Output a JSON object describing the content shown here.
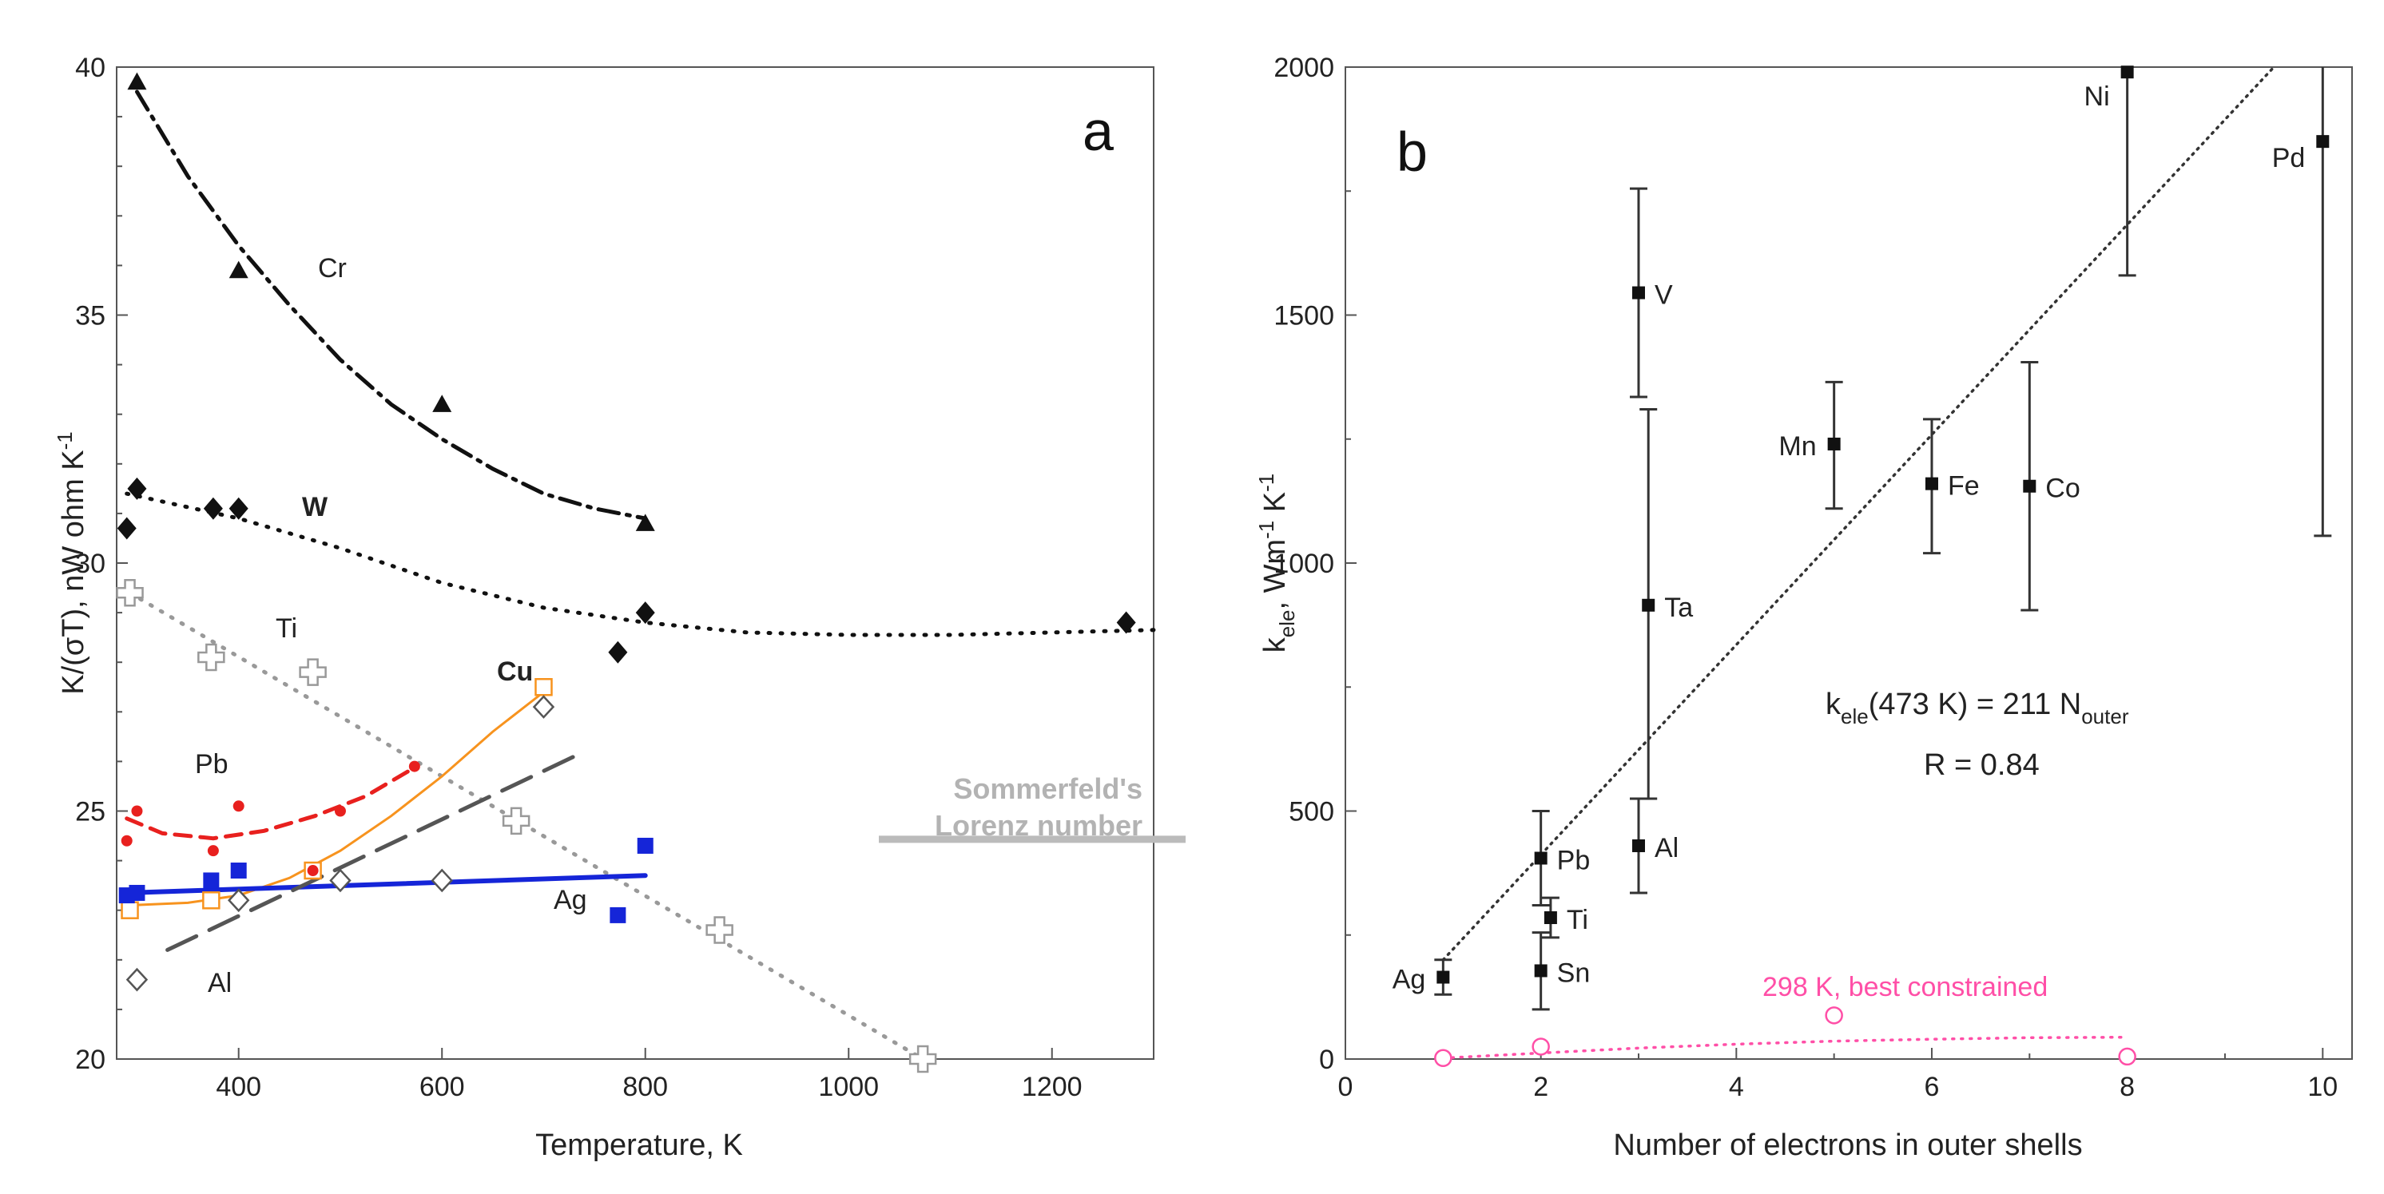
{
  "chart_data": [
    {
      "type": "scatter",
      "panel_label": "a",
      "xlabel": "Temperature, K",
      "ylabel": "K/(σT),  nW ohm K",
      "ylabel_exp": "-1",
      "xlim": [
        280,
        1300
      ],
      "ylim": [
        20,
        40
      ],
      "xticks": [
        400,
        600,
        800,
        1000,
        1200
      ],
      "yticks": [
        20,
        25,
        30,
        35,
        40
      ],
      "reference": {
        "label_line1": "Sommerfeld's",
        "label_line2": "Lorenz number",
        "value": 24.43,
        "color": "#bbbbbb"
      },
      "series": [
        {
          "name": "Cr",
          "marker": "triangle",
          "color": "#111111",
          "points": [
            [
              300,
              39.7
            ],
            [
              400,
              35.9
            ],
            [
              600,
              33.2
            ],
            [
              800,
              30.8
            ]
          ],
          "fit": [
            [
              300,
              39.5
            ],
            [
              350,
              37.8
            ],
            [
              400,
              36.4
            ],
            [
              450,
              35.2
            ],
            [
              500,
              34.1
            ],
            [
              550,
              33.2
            ],
            [
              600,
              32.5
            ],
            [
              650,
              31.9
            ],
            [
              700,
              31.4
            ],
            [
              750,
              31.1
            ],
            [
              800,
              30.9
            ]
          ],
          "line": "dashdot"
        },
        {
          "name": "W",
          "marker": "diamond",
          "color": "#111111",
          "points": [
            [
              290,
              30.7
            ],
            [
              300,
              31.5
            ],
            [
              375,
              31.1
            ],
            [
              400,
              31.1
            ],
            [
              773,
              28.2
            ],
            [
              800,
              29.0
            ],
            [
              1273,
              28.8
            ]
          ],
          "fit": [
            [
              290,
              31.4
            ],
            [
              400,
              30.9
            ],
            [
              500,
              30.3
            ],
            [
              600,
              29.6
            ],
            [
              700,
              29.1
            ],
            [
              800,
              28.8
            ],
            [
              900,
              28.6
            ],
            [
              1000,
              28.55
            ],
            [
              1100,
              28.55
            ],
            [
              1200,
              28.6
            ],
            [
              1300,
              28.65
            ]
          ],
          "line": "dotted"
        },
        {
          "name": "Ti",
          "marker": "cross",
          "color": "#999999",
          "points": [
            [
              293,
              29.4
            ],
            [
              373,
              28.1
            ],
            [
              473,
              27.8
            ],
            [
              673,
              24.8
            ],
            [
              873,
              22.6
            ],
            [
              1073,
              20.0
            ]
          ],
          "fit": [
            [
              293,
              29.4
            ],
            [
              1073,
              20.0
            ]
          ],
          "line": "dotted"
        },
        {
          "name": "Cu",
          "marker": "square_open",
          "color": "#f7931e",
          "points": [
            [
              293,
              23.0
            ],
            [
              373,
              23.2
            ],
            [
              473,
              23.8
            ],
            [
              700,
              27.5
            ]
          ],
          "fit": [
            [
              293,
              23.1
            ],
            [
              350,
              23.15
            ],
            [
              400,
              23.3
            ],
            [
              450,
              23.65
            ],
            [
              500,
              24.2
            ],
            [
              550,
              24.9
            ],
            [
              600,
              25.7
            ],
            [
              650,
              26.6
            ],
            [
              700,
              27.4
            ]
          ],
          "line": "solid"
        },
        {
          "name": "Pb",
          "marker": "circle",
          "color": "#e8201e",
          "points": [
            [
              290,
              24.4
            ],
            [
              300,
              25.0
            ],
            [
              375,
              24.2
            ],
            [
              400,
              25.1
            ],
            [
              473,
              23.8
            ],
            [
              500,
              25.0
            ],
            [
              573,
              25.9
            ]
          ],
          "fit": [
            [
              290,
              24.85
            ],
            [
              325,
              24.55
            ],
            [
              375,
              24.45
            ],
            [
              425,
              24.6
            ],
            [
              475,
              24.9
            ],
            [
              525,
              25.3
            ],
            [
              575,
              25.9
            ]
          ],
          "line": "dashed"
        },
        {
          "name": "Ag",
          "marker": "square",
          "color": "#1525d8",
          "points": [
            [
              290,
              23.3
            ],
            [
              300,
              23.35
            ],
            [
              373,
              23.6
            ],
            [
              400,
              23.8
            ],
            [
              773,
              22.9
            ],
            [
              800,
              24.3
            ]
          ],
          "fit": [
            [
              290,
              23.35
            ],
            [
              800,
              23.7
            ]
          ],
          "line": "solid"
        },
        {
          "name": "Al",
          "marker": "diamond_open",
          "color": "#555555",
          "points": [
            [
              300,
              21.6
            ],
            [
              400,
              23.2
            ],
            [
              500,
              23.6
            ],
            [
              600,
              23.6
            ],
            [
              700,
              27.1
            ]
          ],
          "fit": [
            [
              330,
              22.2
            ],
            [
              730,
              26.1
            ]
          ],
          "line": "longdash"
        }
      ]
    },
    {
      "type": "scatter",
      "panel_label": "b",
      "xlabel": "Number of electrons in outer shells",
      "ylabel_main": "k",
      "ylabel_sub": "ele",
      "ylabel_unit": ",  Wm",
      "ylabel_exp1": "-1",
      "ylabel_unit2": " K",
      "ylabel_exp2": "-1",
      "xlim": [
        0,
        10.3
      ],
      "ylim": [
        0,
        2000
      ],
      "xticks": [
        0,
        2,
        4,
        6,
        8,
        10
      ],
      "yticks": [
        0,
        500,
        1000,
        1500,
        2000
      ],
      "points": [
        {
          "label": "Ag",
          "x": 1,
          "y": 165,
          "yerr_low": 130,
          "yerr_high": 200,
          "label_side": "left"
        },
        {
          "label": "Pb",
          "x": 2,
          "y": 405,
          "yerr_low": 310,
          "yerr_high": 500,
          "label_side": "right"
        },
        {
          "label": "Ti",
          "x": 2.1,
          "y": 285,
          "yerr_low": 245,
          "yerr_high": 325,
          "label_side": "right"
        },
        {
          "label": "Sn",
          "x": 2,
          "y": 178,
          "yerr_low": 100,
          "yerr_high": 255,
          "label_side": "right"
        },
        {
          "label": "V",
          "x": 3,
          "y": 1545,
          "yerr_low": 1335,
          "yerr_high": 1755,
          "label_side": "right"
        },
        {
          "label": "Ta",
          "x": 3.1,
          "y": 915,
          "yerr_low": 525,
          "yerr_high": 1310,
          "label_side": "right"
        },
        {
          "label": "Al",
          "x": 3,
          "y": 430,
          "yerr_low": 335,
          "yerr_high": 525,
          "label_side": "right"
        },
        {
          "label": "Mn",
          "x": 5,
          "y": 1240,
          "yerr_low": 1110,
          "yerr_high": 1365,
          "label_side": "left"
        },
        {
          "label": "Fe",
          "x": 6,
          "y": 1160,
          "yerr_low": 1020,
          "yerr_high": 1290,
          "label_side": "right"
        },
        {
          "label": "Co",
          "x": 7,
          "y": 1155,
          "yerr_low": 905,
          "yerr_high": 1405,
          "label_side": "right"
        },
        {
          "label": "Ni",
          "x": 8,
          "y": 1990,
          "yerr_low": 1580,
          "yerr_high": 2000,
          "label_side": "left"
        },
        {
          "label": "Pd",
          "x": 10,
          "y": 1850,
          "yerr_low": 1055,
          "yerr_high": 2000,
          "label_side": "left"
        }
      ],
      "fit": {
        "name": "linear fit",
        "x0": 1,
        "y0": 200,
        "x1": 9.5,
        "y1": 2000,
        "style": "dotted"
      },
      "annotation": {
        "line1_main": "k",
        "line1_sub": "ele",
        "line1_mid": "(473 K) = 211 N",
        "line1_sub2": "outer",
        "line2": "R = 0.84"
      },
      "secondary": {
        "name": "298 K, best constrained",
        "color": "#ff4fa7",
        "points": [
          [
            1,
            2
          ],
          [
            2,
            25
          ],
          [
            5,
            88
          ],
          [
            8,
            5
          ]
        ],
        "curve": [
          [
            1,
            2
          ],
          [
            2,
            12
          ],
          [
            3,
            22
          ],
          [
            4,
            30
          ],
          [
            5,
            36
          ],
          [
            6,
            40
          ],
          [
            7,
            43
          ],
          [
            8,
            44
          ]
        ]
      }
    }
  ]
}
